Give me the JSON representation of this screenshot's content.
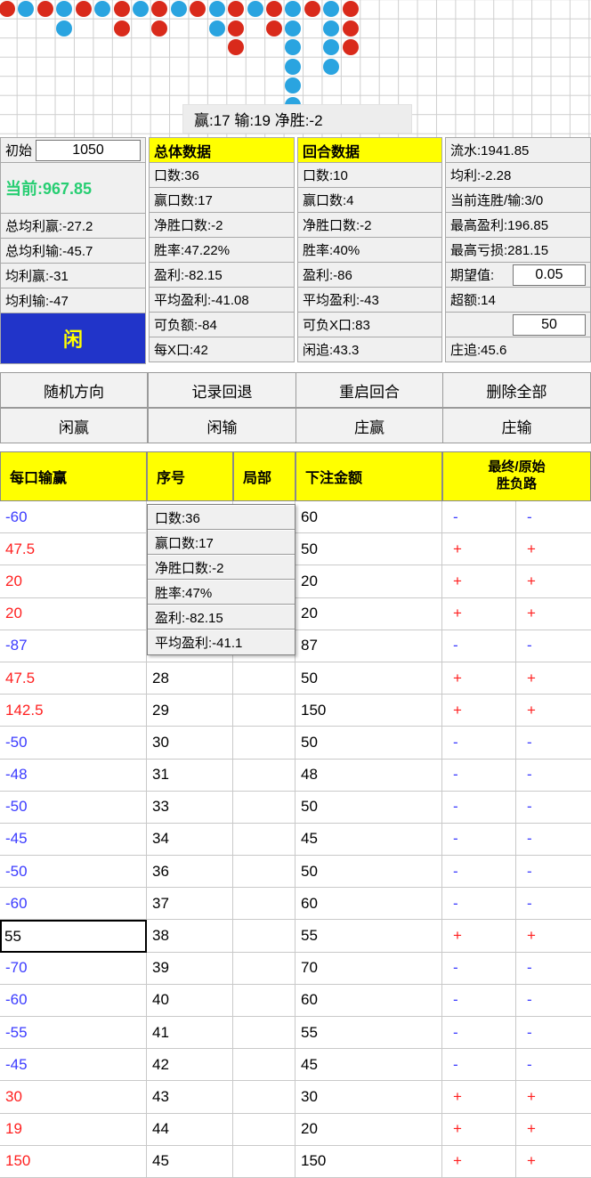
{
  "board": {
    "status_text": "赢:17 输:19 净胜:-2",
    "circles": [
      [
        1,
        1,
        "R"
      ],
      [
        2,
        1,
        "B"
      ],
      [
        3,
        1,
        "R"
      ],
      [
        4,
        1,
        "B"
      ],
      [
        5,
        1,
        "R"
      ],
      [
        6,
        1,
        "B"
      ],
      [
        7,
        1,
        "R"
      ],
      [
        8,
        1,
        "B"
      ],
      [
        9,
        1,
        "R"
      ],
      [
        10,
        1,
        "B"
      ],
      [
        11,
        1,
        "R"
      ],
      [
        12,
        1,
        "B"
      ],
      [
        13,
        1,
        "R"
      ],
      [
        14,
        1,
        "B"
      ],
      [
        15,
        1,
        "R"
      ],
      [
        16,
        1,
        "B"
      ],
      [
        17,
        1,
        "R"
      ],
      [
        18,
        1,
        "B"
      ],
      [
        19,
        1,
        "R"
      ],
      [
        4,
        2,
        "B"
      ],
      [
        7,
        2,
        "R"
      ],
      [
        9,
        2,
        "R"
      ],
      [
        12,
        2,
        "B"
      ],
      [
        13,
        2,
        "R"
      ],
      [
        15,
        2,
        "R"
      ],
      [
        16,
        2,
        "B"
      ],
      [
        18,
        2,
        "B"
      ],
      [
        19,
        2,
        "R"
      ],
      [
        13,
        3,
        "R"
      ],
      [
        16,
        3,
        "B"
      ],
      [
        18,
        3,
        "B"
      ],
      [
        19,
        3,
        "R"
      ],
      [
        16,
        4,
        "B"
      ],
      [
        18,
        4,
        "B"
      ],
      [
        16,
        5,
        "B"
      ],
      [
        16,
        6,
        "B"
      ]
    ]
  },
  "stats": {
    "col1": {
      "initial_label": "初始",
      "initial_value": "1050",
      "current": "当前:967.85",
      "avg_profit_win_total": "总均利赢:-27.2",
      "avg_profit_loss_total": "总均利输:-45.7",
      "avg_profit_win": "均利赢:-31",
      "avg_profit_loss": "均利输:-47",
      "side_box": "闲"
    },
    "overall": {
      "header": "总体数据",
      "rows": [
        "口数:36",
        "赢口数:17",
        "净胜口数:-2",
        "胜率:47.22%",
        "盈利:-82.15",
        "平均盈利:-41.08",
        "可负额:-84",
        "每X口:42"
      ]
    },
    "round": {
      "header": "回合数据",
      "rows": [
        "口数:10",
        "赢口数:4",
        "净胜口数:-2",
        "胜率:40%",
        "盈利:-86",
        "平均盈利:-43",
        "可负X口:83",
        "闲追:43.3"
      ]
    },
    "col4": {
      "turnover": "流水:1941.85",
      "avg_profit": "均利:-2.28",
      "current_streak": "当前连胜/输:3/0",
      "max_profit": "最高盈利:196.85",
      "max_loss": "最高亏损:281.15",
      "expectation_label": "期望值:",
      "expectation_value": "0.05",
      "excess": "超额:14",
      "base_bet_value": "50",
      "banker_chase": "庄追:45.6"
    }
  },
  "buttons": {
    "row1": [
      "随机方向",
      "记录回退",
      "重启回合",
      "删除全部"
    ],
    "row2": [
      "闲赢",
      "闲输",
      "庄赢",
      "庄输"
    ]
  },
  "bet_table": {
    "h_win": "每口输赢",
    "h_seq": "序号",
    "h_part": "局部",
    "h_bet": "下注金额",
    "h_result_line1": "最终/原始",
    "h_result_line2": "胜负路",
    "focused_row_index": 13,
    "rows": [
      {
        "win": "-60",
        "seq": "",
        "bet": "60",
        "sign": "-"
      },
      {
        "win": "47.5",
        "seq": "",
        "bet": "50",
        "sign": "+"
      },
      {
        "win": "20",
        "seq": "",
        "bet": "20",
        "sign": "+"
      },
      {
        "win": "20",
        "seq": "",
        "bet": "20",
        "sign": "+"
      },
      {
        "win": "-87",
        "seq": "",
        "bet": "87",
        "sign": "-"
      },
      {
        "win": "47.5",
        "seq": "28",
        "bet": "50",
        "sign": "+"
      },
      {
        "win": "142.5",
        "seq": "29",
        "bet": "150",
        "sign": "+"
      },
      {
        "win": "-50",
        "seq": "30",
        "bet": "50",
        "sign": "-"
      },
      {
        "win": "-48",
        "seq": "31",
        "bet": "48",
        "sign": "-"
      },
      {
        "win": "-50",
        "seq": "33",
        "bet": "50",
        "sign": "-"
      },
      {
        "win": "-45",
        "seq": "34",
        "bet": "45",
        "sign": "-"
      },
      {
        "win": "-50",
        "seq": "36",
        "bet": "50",
        "sign": "-"
      },
      {
        "win": "-60",
        "seq": "37",
        "bet": "60",
        "sign": "-"
      },
      {
        "win": "55",
        "seq": "38",
        "bet": "55",
        "sign": "+"
      },
      {
        "win": "-70",
        "seq": "39",
        "bet": "70",
        "sign": "-"
      },
      {
        "win": "-60",
        "seq": "40",
        "bet": "60",
        "sign": "-"
      },
      {
        "win": "-55",
        "seq": "41",
        "bet": "55",
        "sign": "-"
      },
      {
        "win": "-45",
        "seq": "42",
        "bet": "45",
        "sign": "-"
      },
      {
        "win": "30",
        "seq": "43",
        "bet": "30",
        "sign": "+"
      },
      {
        "win": "19",
        "seq": "44",
        "bet": "20",
        "sign": "+"
      },
      {
        "win": "150",
        "seq": "45",
        "bet": "150",
        "sign": "+"
      }
    ]
  },
  "tooltip": {
    "lines": [
      "口数:36",
      "赢口数:17",
      "净胜口数:-2",
      "胜率:47%",
      "盈利:-82.15",
      "平均盈利:-41.1"
    ]
  },
  "colors": {
    "banker_red": "#d92a1b",
    "player_blue": "#2aa4e0",
    "accent_yellow": "#ffff00",
    "current_green": "#27ce72",
    "side_box_blue": "#2134c9",
    "win_red": "#ff1f1f",
    "loss_blue": "#3b3bff"
  }
}
